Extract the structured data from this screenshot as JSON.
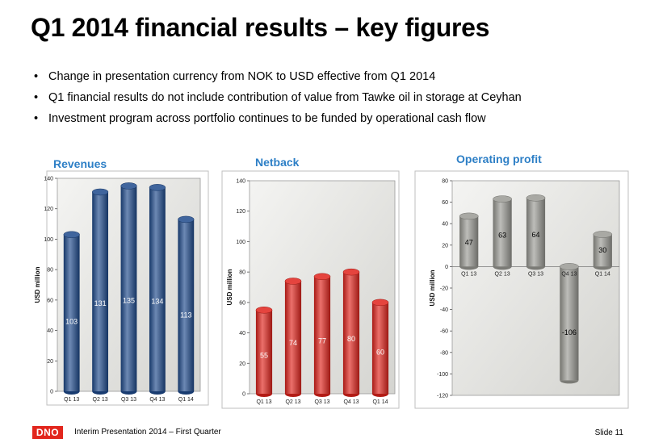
{
  "slide": {
    "title": "Q1 2014 financial results – key figures",
    "bullets": [
      "Change in presentation currency from NOK to USD effective from Q1 2014",
      "Q1 financial results do not include contribution of value from Tawke oil in storage at Ceyhan",
      "Investment program across portfolio continues to be funded by operational cash flow"
    ],
    "footer": {
      "logo_text": "DNO",
      "text": "Interim Presentation 2014 – First Quarter",
      "slide_number": "Slide 11"
    }
  },
  "colors": {
    "revenues": "#1e4a8c",
    "netback": "#e0231c",
    "operating_profit": "#9a9a94",
    "chart_title": "#2d7fc6"
  },
  "chart_data": [
    {
      "type": "bar",
      "title": "Revenues",
      "ylabel": "USD million",
      "categories": [
        "Q1 13",
        "Q2 13",
        "Q3 13",
        "Q4 13",
        "Q1 14"
      ],
      "values": [
        103,
        131,
        135,
        134,
        113
      ],
      "data_labels": [
        "103",
        "131",
        "135",
        "134",
        "113"
      ],
      "ylim": [
        0,
        140
      ],
      "yticks": [
        0,
        20,
        40,
        60,
        80,
        100,
        120,
        140
      ],
      "grid": false,
      "color": "#1e4a8c"
    },
    {
      "type": "bar",
      "title": "Netback",
      "ylabel": "USD million",
      "categories": [
        "Q1 13",
        "Q2 13",
        "Q3 13",
        "Q4 13",
        "Q1 14"
      ],
      "values": [
        55,
        74,
        77,
        80,
        60
      ],
      "data_labels": [
        "55",
        "74",
        "77",
        "80",
        "60"
      ],
      "ylim": [
        0,
        140
      ],
      "yticks": [
        0,
        20,
        40,
        60,
        80,
        100,
        120,
        140
      ],
      "grid": false,
      "color": "#e0231c"
    },
    {
      "type": "bar",
      "title": "Operating profit",
      "ylabel": "USD million",
      "categories": [
        "Q1 13",
        "Q2 13",
        "Q3 13",
        "Q4 13",
        "Q1 14"
      ],
      "values": [
        47,
        63,
        64,
        -106,
        30
      ],
      "data_labels": [
        "47",
        "63",
        "64",
        "-106",
        "30"
      ],
      "ylim": [
        -120,
        80
      ],
      "yticks": [
        -120,
        -100,
        -80,
        -60,
        -40,
        -20,
        0,
        20,
        40,
        60,
        80
      ],
      "grid": false,
      "color": "#9a9a94"
    }
  ]
}
